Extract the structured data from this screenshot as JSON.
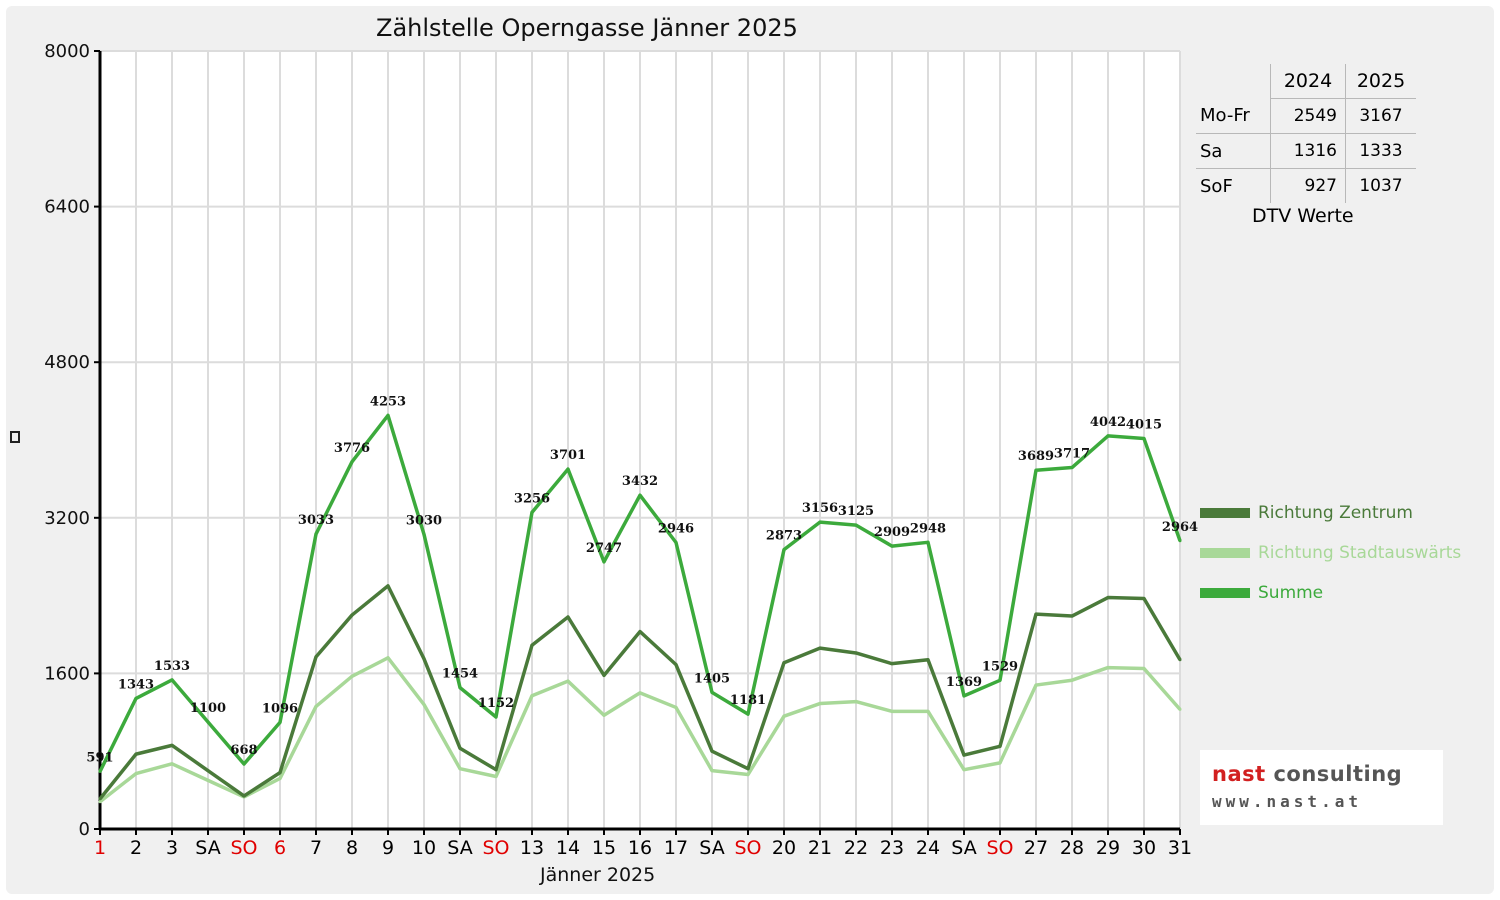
{
  "chart_data": {
    "type": "line",
    "title": "Zählstelle Operngasse Jänner 2025",
    "xlabel": "Jänner 2025",
    "ylabel": "",
    "ylim": [
      0,
      8000
    ],
    "yticks": [
      "0",
      "1600",
      "3200",
      "4800",
      "6400",
      "8000"
    ],
    "grid": true,
    "legend_position": "right",
    "categories": [
      "1",
      "2",
      "3",
      "SA",
      "SO",
      "6",
      "7",
      "8",
      "9",
      "10",
      "SA",
      "SO",
      "13",
      "14",
      "15",
      "16",
      "17",
      "SA",
      "SO",
      "20",
      "21",
      "22",
      "23",
      "24",
      "SA",
      "SO",
      "27",
      "28",
      "29",
      "30",
      "31"
    ],
    "category_colors": [
      "#e00000",
      "#000000",
      "#000000",
      "#000000",
      "#e00000",
      "#e00000",
      "#000000",
      "#000000",
      "#000000",
      "#000000",
      "#000000",
      "#e00000",
      "#000000",
      "#000000",
      "#000000",
      "#000000",
      "#000000",
      "#000000",
      "#e00000",
      "#000000",
      "#000000",
      "#000000",
      "#000000",
      "#000000",
      "#000000",
      "#e00000",
      "#000000",
      "#000000",
      "#000000",
      "#000000",
      "#000000"
    ],
    "series": [
      {
        "name": "Richtung Zentrum",
        "color": "#4a7a3a",
        "values": [
          310,
          770,
          860,
          600,
          340,
          580,
          1770,
          2200,
          2500,
          1750,
          830,
          610,
          1890,
          2180,
          1580,
          2030,
          1690,
          800,
          620,
          1710,
          1860,
          1810,
          1700,
          1740,
          760,
          850,
          2210,
          2190,
          2380,
          2370,
          1740
        ]
      },
      {
        "name": "Richtung Stadtauswärts",
        "color": "#a8d898",
        "values": [
          280,
          570,
          670,
          500,
          330,
          520,
          1260,
          1570,
          1760,
          1280,
          620,
          540,
          1370,
          1520,
          1170,
          1400,
          1250,
          600,
          560,
          1160,
          1290,
          1310,
          1210,
          1210,
          610,
          680,
          1480,
          1530,
          1660,
          1650,
          1230
        ]
      },
      {
        "name": "Summe",
        "color": "#3caa3c",
        "values": [
          591,
          1343,
          1533,
          1100,
          668,
          1096,
          3033,
          3776,
          4253,
          3030,
          1454,
          1152,
          3256,
          3701,
          2747,
          3432,
          2946,
          1405,
          1181,
          2873,
          3156,
          3125,
          2909,
          2948,
          1369,
          1529,
          3689,
          3717,
          4042,
          4015,
          2964
        ],
        "labels": [
          "591",
          "1343",
          "1533",
          "1100",
          "668",
          "1096",
          "3033",
          "3776",
          "4253",
          "3030",
          "1454",
          "1152",
          "3256",
          "3701",
          "2747",
          "3432",
          "2946",
          "1405",
          "1181",
          "2873",
          "3156",
          "3125",
          "2909",
          "2948",
          "1369",
          "1529",
          "3689",
          "3717",
          "4042",
          "4015",
          "2964"
        ]
      }
    ]
  },
  "dtv_table": {
    "caption": "DTV Werte",
    "header": [
      "",
      "2024",
      "2025"
    ],
    "rows": [
      {
        "label": "Mo-Fr",
        "y2024": "2549",
        "y2025": "3167"
      },
      {
        "label": "Sa",
        "y2024": "1316",
        "y2025": "1333"
      },
      {
        "label": "SoF",
        "y2024": "927",
        "y2025": "1037"
      }
    ]
  },
  "logo": {
    "name_part1": "nast",
    "name_part2": "consulting",
    "url": "www.nast.at"
  }
}
